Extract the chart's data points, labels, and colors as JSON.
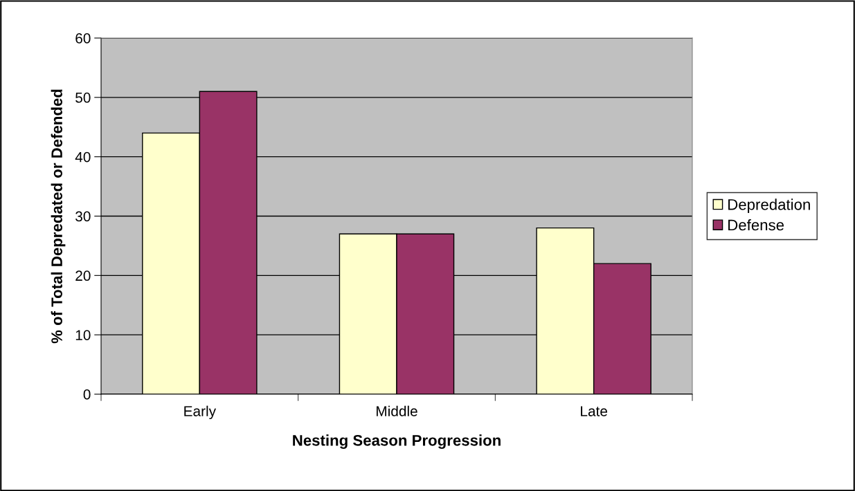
{
  "chart_data": {
    "type": "bar",
    "xlabel": "Nesting Season Progression",
    "ylabel": "% of Total Depredated or Defended",
    "categories": [
      "Early",
      "Middle",
      "Late"
    ],
    "series": [
      {
        "name": "Depredation",
        "color": "#ffffcc",
        "values": [
          44,
          27,
          28
        ]
      },
      {
        "name": "Defense",
        "color": "#993366",
        "values": [
          51,
          27,
          22
        ]
      }
    ],
    "ylim": [
      0,
      60
    ],
    "yticks": [
      0,
      10,
      20,
      30,
      40,
      50,
      60
    ],
    "grid": "y",
    "legend": "right"
  }
}
